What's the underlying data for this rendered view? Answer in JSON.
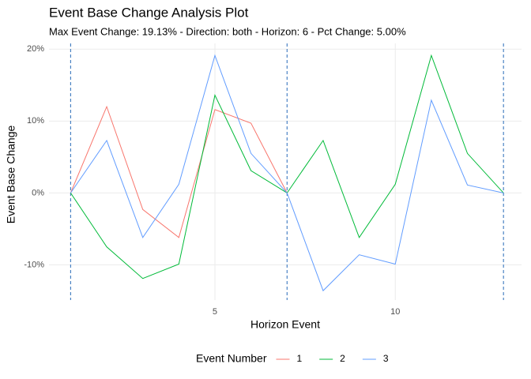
{
  "chart_data": {
    "type": "line",
    "title": "Event Base Change Analysis Plot",
    "subtitle": "Max Event Change: 19.13% - Direction: both - Horizon: 6 - Pct Change: 5.00%",
    "x_label": "Horizon Event",
    "y_label": "Event Base Change",
    "legend_title": "Event Number",
    "legend_position": "bottom",
    "x": [
      1,
      2,
      3,
      4,
      5,
      6,
      7,
      8,
      9,
      10,
      11,
      12,
      13
    ],
    "series": [
      {
        "name": "1",
        "color": "#F8766D",
        "values": [
          0,
          12.0,
          -2.3,
          -6.2,
          11.6,
          9.7,
          0,
          null,
          null,
          null,
          null,
          null,
          null
        ]
      },
      {
        "name": "2",
        "color": "#00BA38",
        "values": [
          0,
          -7.5,
          -11.9,
          -9.9,
          13.6,
          3.1,
          0,
          7.3,
          -6.2,
          1.2,
          19.13,
          5.5,
          0
        ]
      },
      {
        "name": "3",
        "color": "#619CFF",
        "values": [
          0,
          7.3,
          -6.2,
          1.2,
          19.13,
          5.5,
          0,
          -13.6,
          -8.6,
          -9.9,
          12.9,
          1.1,
          0
        ]
      }
    ],
    "vlines": [
      1,
      7,
      13
    ],
    "vline_color": "#3B78BF",
    "xlim": [
      0.4,
      13.5
    ],
    "ylim": [
      -14.9,
      20.8
    ],
    "xticks": [
      5,
      10
    ],
    "yticks": [
      {
        "value": -10,
        "label": "-10%"
      },
      {
        "value": 0,
        "label": "0%"
      },
      {
        "value": 10,
        "label": "10%"
      },
      {
        "value": 20,
        "label": "20%"
      }
    ],
    "grid": true
  }
}
